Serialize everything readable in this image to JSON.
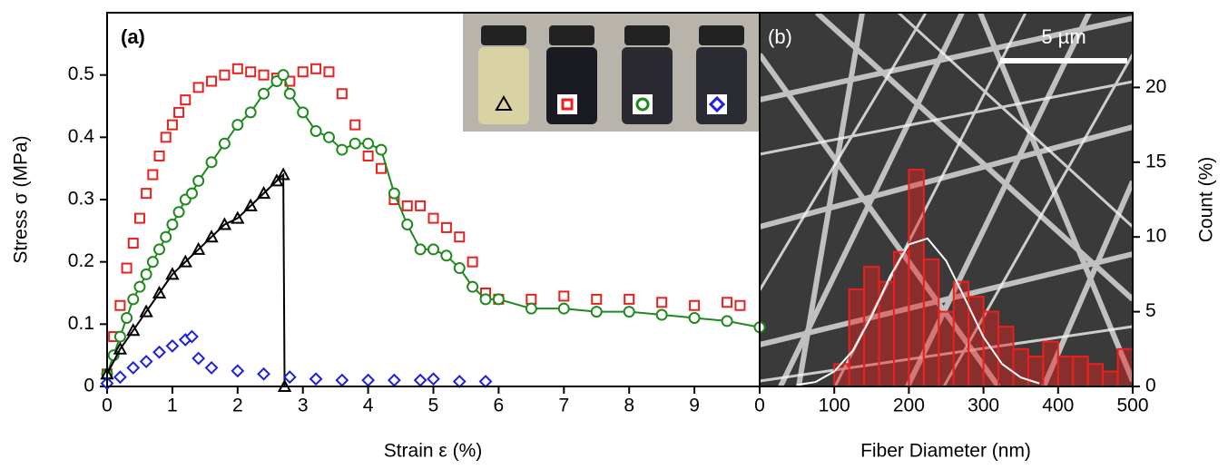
{
  "chart_data": [
    {
      "type": "line",
      "label": "(a)",
      "xlabel": "Strain ε (%)",
      "ylabel": "Stress σ (MPa)",
      "xlim": [
        0,
        10
      ],
      "ylim": [
        0,
        0.6
      ],
      "xticks": [
        0,
        1,
        2,
        3,
        4,
        5,
        6,
        7,
        8,
        9
      ],
      "yticks": [
        0,
        0.1,
        0.2,
        0.3,
        0.4,
        0.5
      ],
      "series": [
        {
          "color": "#e8211f",
          "marker": "square",
          "line": false,
          "x": [
            0,
            0.1,
            0.2,
            0.3,
            0.4,
            0.5,
            0.6,
            0.7,
            0.8,
            0.9,
            1.0,
            1.1,
            1.2,
            1.4,
            1.6,
            1.8,
            2.0,
            2.2,
            2.4,
            2.6,
            2.8,
            3.0,
            3.2,
            3.4,
            3.6,
            3.8,
            4.0,
            4.2,
            4.4,
            4.6,
            4.8,
            5.0,
            5.2,
            5.4,
            5.6,
            5.8,
            6.0,
            6.5,
            7.0,
            7.5,
            8.0,
            8.5,
            9.0,
            9.5,
            9.7
          ],
          "values": [
            0.02,
            0.08,
            0.13,
            0.19,
            0.23,
            0.27,
            0.31,
            0.34,
            0.37,
            0.4,
            0.42,
            0.44,
            0.46,
            0.48,
            0.49,
            0.5,
            0.51,
            0.505,
            0.5,
            0.495,
            0.49,
            0.505,
            0.51,
            0.505,
            0.47,
            0.42,
            0.37,
            0.35,
            0.3,
            0.29,
            0.29,
            0.27,
            0.255,
            0.24,
            0.2,
            0.15,
            0.14,
            0.14,
            0.145,
            0.14,
            0.14,
            0.135,
            0.13,
            0.135,
            0.13
          ]
        },
        {
          "color": "#1e8a1e",
          "marker": "circle",
          "line": true,
          "x": [
            0,
            0.1,
            0.2,
            0.3,
            0.4,
            0.5,
            0.6,
            0.7,
            0.8,
            0.9,
            1.0,
            1.1,
            1.2,
            1.3,
            1.4,
            1.6,
            1.8,
            2.0,
            2.2,
            2.4,
            2.6,
            2.7,
            2.8,
            3.0,
            3.2,
            3.4,
            3.6,
            3.8,
            4.0,
            4.2,
            4.4,
            4.6,
            4.8,
            5.0,
            5.2,
            5.4,
            5.6,
            5.8,
            6.0,
            6.5,
            7.0,
            7.5,
            8.0,
            8.5,
            9.0,
            9.5,
            10
          ],
          "values": [
            0.02,
            0.05,
            0.08,
            0.11,
            0.14,
            0.16,
            0.18,
            0.2,
            0.22,
            0.24,
            0.26,
            0.28,
            0.3,
            0.31,
            0.33,
            0.36,
            0.39,
            0.42,
            0.44,
            0.47,
            0.49,
            0.5,
            0.47,
            0.44,
            0.41,
            0.4,
            0.38,
            0.39,
            0.39,
            0.38,
            0.31,
            0.26,
            0.22,
            0.22,
            0.21,
            0.19,
            0.16,
            0.14,
            0.14,
            0.125,
            0.125,
            0.12,
            0.12,
            0.115,
            0.11,
            0.105,
            0.095
          ]
        },
        {
          "color": "#000000",
          "marker": "triangle",
          "line": true,
          "x": [
            0,
            0.2,
            0.4,
            0.6,
            0.8,
            1.0,
            1.2,
            1.4,
            1.6,
            1.8,
            2.0,
            2.2,
            2.4,
            2.6,
            2.7,
            2.72
          ],
          "values": [
            0.02,
            0.06,
            0.09,
            0.12,
            0.15,
            0.18,
            0.2,
            0.22,
            0.24,
            0.26,
            0.27,
            0.29,
            0.31,
            0.33,
            0.34,
            0
          ]
        },
        {
          "color": "#1f1fe0",
          "marker": "diamond",
          "line": false,
          "x": [
            0,
            0.2,
            0.4,
            0.6,
            0.8,
            1.0,
            1.2,
            1.3,
            1.4,
            1.6,
            2.0,
            2.4,
            2.8,
            3.2,
            3.6,
            4.0,
            4.4,
            4.8,
            5.0,
            5.4,
            5.8
          ],
          "values": [
            0.005,
            0.015,
            0.03,
            0.04,
            0.055,
            0.065,
            0.075,
            0.08,
            0.045,
            0.03,
            0.025,
            0.02,
            0.015,
            0.012,
            0.01,
            0.01,
            0.01,
            0.01,
            0.012,
            0.008,
            0.008
          ]
        }
      ]
    },
    {
      "type": "histogram",
      "label": "(b)",
      "scalebar": "5 µm",
      "xlabel": "Fiber Diameter (nm)",
      "ylabel": "Count (%)",
      "xlim": [
        0,
        500
      ],
      "y2lim": [
        0,
        25
      ],
      "xticks": [
        0,
        100,
        200,
        300,
        400,
        500
      ],
      "y2ticks": [
        0,
        5,
        10,
        15,
        20
      ],
      "color": "#e8211f",
      "bins": [
        100,
        120,
        140,
        160,
        180,
        200,
        220,
        240,
        260,
        280,
        300,
        320,
        340,
        360,
        380,
        400,
        420,
        440,
        460,
        480,
        500
      ],
      "values": [
        1.5,
        6.5,
        8,
        7,
        9,
        14.5,
        8.5,
        5,
        7,
        6,
        5,
        4,
        2.5,
        2,
        3,
        2,
        2,
        1.5,
        1,
        2.5
      ],
      "fit": {
        "color": "#ffffff",
        "x": [
          50,
          75,
          100,
          125,
          150,
          175,
          200,
          225,
          250,
          275,
          300,
          325,
          350,
          375
        ],
        "values": [
          0.1,
          0.3,
          1.0,
          2.4,
          4.7,
          7.4,
          9.5,
          9.9,
          8.4,
          5.9,
          3.3,
          1.5,
          0.6,
          0.2
        ]
      }
    }
  ]
}
